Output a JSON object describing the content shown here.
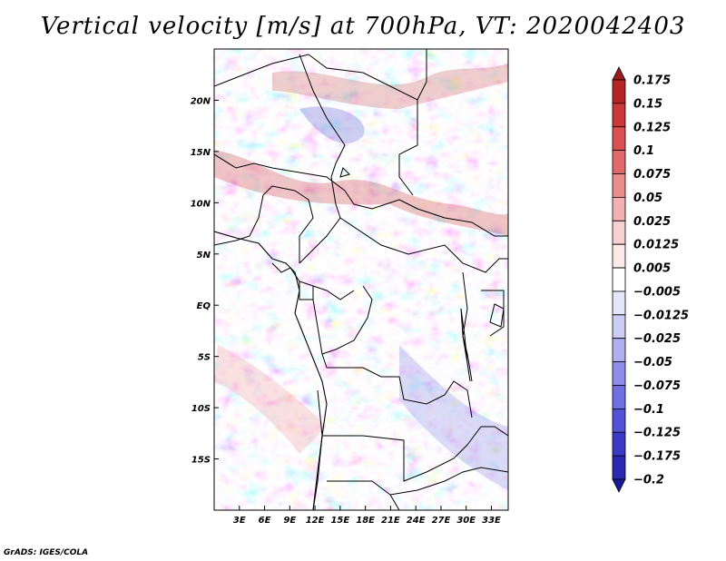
{
  "title": "Vertical velocity [m/s] at 700hPa, VT: 2020042403",
  "credit": "GrADS: IGES/COLA",
  "map": {
    "lon_range": [
      0,
      35
    ],
    "lat_range": [
      -20,
      25
    ],
    "lat_ticks": [
      {
        "value": 20,
        "label": "20N"
      },
      {
        "value": 15,
        "label": "15N"
      },
      {
        "value": 10,
        "label": "10N"
      },
      {
        "value": 5,
        "label": "5N"
      },
      {
        "value": 0,
        "label": "EQ"
      },
      {
        "value": -5,
        "label": "5S"
      },
      {
        "value": -10,
        "label": "10S"
      },
      {
        "value": -15,
        "label": "15S"
      }
    ],
    "lon_ticks": [
      {
        "value": 3,
        "label": "3E"
      },
      {
        "value": 6,
        "label": "6E"
      },
      {
        "value": 9,
        "label": "9E"
      },
      {
        "value": 12,
        "label": "12E"
      },
      {
        "value": 15,
        "label": "15E"
      },
      {
        "value": 18,
        "label": "18E"
      },
      {
        "value": 21,
        "label": "21E"
      },
      {
        "value": 24,
        "label": "24E"
      },
      {
        "value": 27,
        "label": "27E"
      },
      {
        "value": 30,
        "label": "30E"
      },
      {
        "value": 33,
        "label": "33E"
      }
    ]
  },
  "colorbar": {
    "colors": [
      "#9a1c1c",
      "#b52424",
      "#cc3838",
      "#d95050",
      "#e06a6a",
      "#eb8d8d",
      "#f3b1b1",
      "#f8d0d0",
      "#fce9e9",
      "#ffffff",
      "#e6e6fa",
      "#ccccf5",
      "#b0b0f0",
      "#8f8fea",
      "#6f6fe2",
      "#5252d6",
      "#3a3ac6",
      "#2828b0",
      "#1a1a96"
    ],
    "labels": [
      "0.175",
      "0.15",
      "0.125",
      "0.1",
      "0.075",
      "0.05",
      "0.025",
      "0.0125",
      "0.005",
      "−0.005",
      "−0.0125",
      "−0.025",
      "−0.05",
      "−0.075",
      "−0.1",
      "−0.125",
      "−0.175",
      "−0.2"
    ]
  }
}
